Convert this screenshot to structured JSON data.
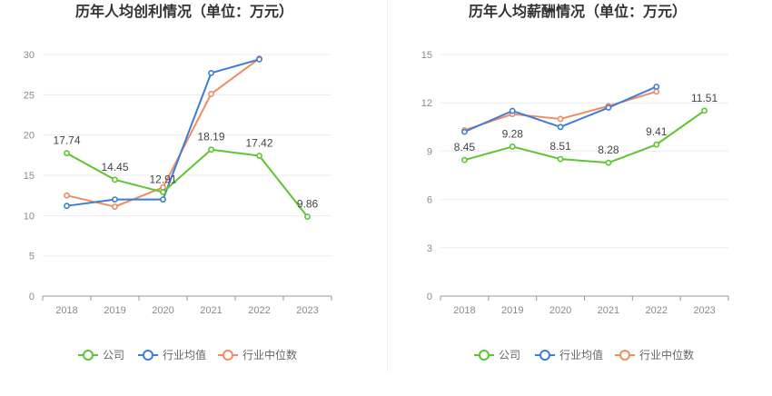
{
  "colors": {
    "company": "#5cc52f",
    "industry_avg": "#3f7bd9",
    "industry_median": "#f08c62",
    "grid": "#e8ebf2",
    "axis": "#999999"
  },
  "legend": {
    "company": "公司",
    "industry_avg": "行业均值",
    "industry_median": "行业中位数"
  },
  "chart_data": [
    {
      "type": "line",
      "title": "历年人均创利情况（单位：万元）",
      "categories": [
        "2018",
        "2019",
        "2020",
        "2021",
        "2022",
        "2023"
      ],
      "ylim": [
        0,
        30
      ],
      "yticks": [
        0,
        5,
        10,
        15,
        20,
        25,
        30
      ],
      "grid": true,
      "legend_position": "bottom",
      "series": [
        {
          "key": "company",
          "name": "公司",
          "values": [
            17.74,
            14.45,
            12.91,
            18.19,
            17.42,
            9.86
          ],
          "labels": [
            "17.74",
            "14.45",
            "12.91",
            "18.19",
            "17.42",
            "9.86"
          ]
        },
        {
          "key": "industry_avg",
          "name": "行业均值",
          "values": [
            11.2,
            12.0,
            12.0,
            27.7,
            29.4,
            null
          ]
        },
        {
          "key": "industry_median",
          "name": "行业中位数",
          "values": [
            12.5,
            11.1,
            13.5,
            25.1,
            29.5,
            null
          ]
        }
      ]
    },
    {
      "type": "line",
      "title": "历年人均薪酬情况（单位：万元）",
      "categories": [
        "2018",
        "2019",
        "2020",
        "2021",
        "2022",
        "2023"
      ],
      "ylim": [
        0,
        15
      ],
      "yticks": [
        0,
        3,
        6,
        9,
        12,
        15
      ],
      "grid": true,
      "legend_position": "bottom",
      "series": [
        {
          "key": "company",
          "name": "公司",
          "values": [
            8.45,
            9.28,
            8.51,
            8.28,
            9.41,
            11.51
          ],
          "labels": [
            "8.45",
            "9.28",
            "8.51",
            "8.28",
            "9.41",
            "11.51"
          ]
        },
        {
          "key": "industry_avg",
          "name": "行业均值",
          "values": [
            10.2,
            11.5,
            10.5,
            11.7,
            13.0,
            null
          ]
        },
        {
          "key": "industry_median",
          "name": "行业中位数",
          "values": [
            10.3,
            11.3,
            11.0,
            11.8,
            12.7,
            null
          ]
        }
      ]
    }
  ]
}
